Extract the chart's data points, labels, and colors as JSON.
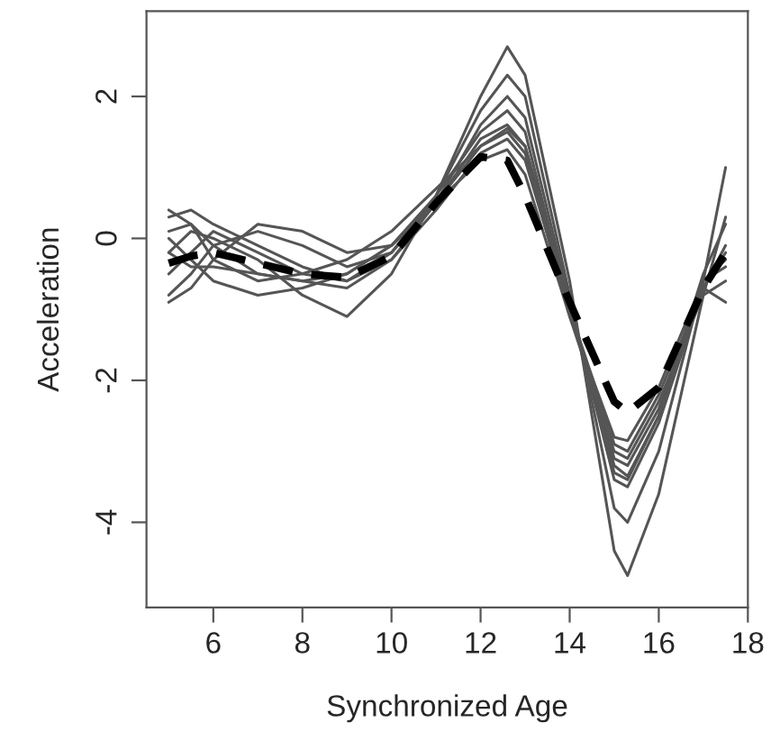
{
  "chart_data": {
    "type": "line",
    "xlabel": "Synchronized Age",
    "ylabel": "Acceleration",
    "x": [
      5,
      5.5,
      6,
      7,
      8,
      9,
      10,
      11,
      12,
      12.6,
      13,
      14,
      15,
      15.3,
      16,
      17,
      17.5
    ],
    "xlim": [
      4.5,
      18
    ],
    "xticks": [
      6,
      8,
      10,
      12,
      14,
      16,
      18
    ],
    "ylim": [
      -5.2,
      3.2
    ],
    "yticks": [
      -4,
      -2,
      0,
      2
    ],
    "grid": false,
    "legend": false,
    "marker": "none",
    "series": [
      {
        "color": "#555555",
        "line_style": "solid",
        "values": [
          -0.2,
          0.1,
          0.0,
          -0.3,
          -0.8,
          -1.1,
          -0.5,
          0.6,
          2.0,
          2.7,
          2.3,
          -0.6,
          -4.4,
          -4.75,
          -3.6,
          -0.8,
          0.3
        ]
      },
      {
        "color": "#555555",
        "line_style": "solid",
        "values": [
          0.3,
          0.4,
          0.2,
          -0.1,
          -0.4,
          -0.6,
          -0.2,
          0.6,
          1.8,
          2.3,
          2.0,
          -0.8,
          -3.8,
          -4.0,
          -3.0,
          -0.6,
          1.0
        ]
      },
      {
        "color": "#555555",
        "line_style": "solid",
        "values": [
          -0.8,
          -0.5,
          -0.1,
          0.1,
          -0.1,
          -0.4,
          -0.2,
          0.5,
          1.6,
          2.0,
          1.7,
          -0.9,
          -3.4,
          -3.5,
          -2.6,
          -0.7,
          -0.1
        ]
      },
      {
        "color": "#555555",
        "line_style": "solid",
        "values": [
          0.0,
          -0.3,
          -0.6,
          -0.8,
          -0.7,
          -0.5,
          -0.1,
          0.6,
          1.5,
          1.8,
          1.5,
          -1.0,
          -3.2,
          -3.35,
          -2.5,
          -0.5,
          0.2
        ]
      },
      {
        "color": "#555555",
        "line_style": "solid",
        "values": [
          -0.9,
          -0.7,
          -0.3,
          0.2,
          0.1,
          -0.2,
          -0.1,
          0.5,
          1.4,
          1.6,
          1.3,
          -1.0,
          -3.1,
          -3.2,
          -2.4,
          -0.6,
          -0.3
        ]
      },
      {
        "color": "#555555",
        "line_style": "solid",
        "values": [
          0.1,
          0.2,
          -0.1,
          -0.5,
          -0.6,
          -0.7,
          -0.3,
          0.5,
          1.3,
          1.5,
          1.2,
          -1.1,
          -3.0,
          -3.1,
          -2.3,
          -0.8,
          -0.6
        ]
      },
      {
        "color": "#555555",
        "line_style": "solid",
        "values": [
          -0.5,
          -0.2,
          0.1,
          -0.2,
          -0.5,
          -0.6,
          -0.3,
          0.4,
          1.2,
          1.4,
          1.1,
          -1.0,
          -2.9,
          -3.0,
          -2.2,
          -0.7,
          -0.9
        ]
      },
      {
        "color": "#555555",
        "line_style": "solid",
        "values": [
          -0.2,
          -0.4,
          -0.4,
          -0.5,
          -0.6,
          -0.5,
          -0.1,
          0.5,
          1.1,
          1.25,
          0.9,
          -1.1,
          -2.8,
          -2.85,
          -2.1,
          -0.6,
          -0.4
        ]
      },
      {
        "color": "#555555",
        "line_style": "solid",
        "values": [
          0.4,
          0.2,
          -0.3,
          -0.6,
          -0.5,
          -0.3,
          0.1,
          0.7,
          1.3,
          1.55,
          1.3,
          -0.9,
          -3.3,
          -3.4,
          -2.5,
          -0.7,
          -0.2
        ]
      },
      {
        "color": "#000000",
        "line_style": "dashed",
        "values": [
          -0.35,
          -0.25,
          -0.2,
          -0.35,
          -0.5,
          -0.55,
          -0.25,
          0.5,
          1.15,
          1.1,
          0.6,
          -0.9,
          -2.3,
          -2.45,
          -2.1,
          -0.7,
          -0.2
        ]
      }
    ]
  }
}
